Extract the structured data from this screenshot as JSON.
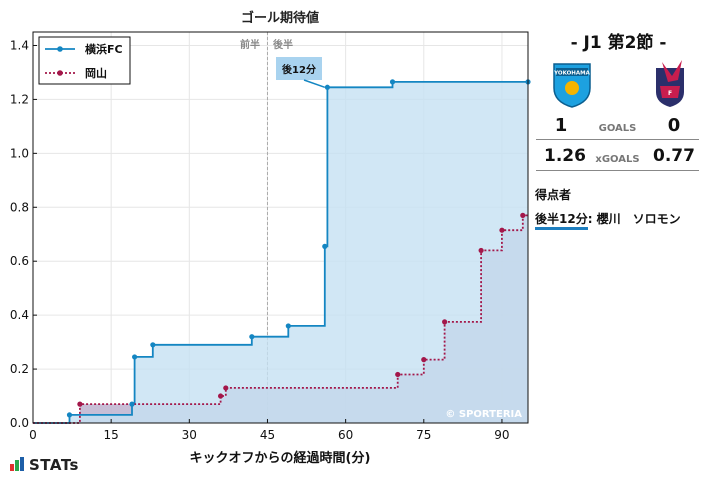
{
  "chart_data": {
    "type": "line",
    "title": "ゴール期待値",
    "xlabel": "キックオフからの経過時間(分)",
    "ylabel": "",
    "xlim": [
      0,
      95
    ],
    "ylim": [
      0,
      1.45
    ],
    "xticks": [
      0,
      15,
      30,
      45,
      60,
      75,
      90
    ],
    "yticks": [
      0.0,
      0.2,
      0.4,
      0.6,
      0.8,
      1.0,
      1.2,
      1.4
    ],
    "grid": true,
    "legend_position": "top-left",
    "halftime_labels": {
      "first": "前半",
      "second": "後半",
      "x": 45
    },
    "annotation": {
      "text": "後12分",
      "x": 56,
      "y": 1.245
    },
    "watermark": "© SPORTERIA",
    "series": [
      {
        "name": "横浜FC",
        "color": "#1486c2",
        "fill": "#c5e1f3",
        "style": "solid",
        "x": [
          7,
          19,
          19.5,
          23,
          42,
          49,
          56,
          56.5,
          69,
          95
        ],
        "y": [
          0.03,
          0.07,
          0.245,
          0.29,
          0.32,
          0.36,
          0.655,
          1.245,
          1.265,
          1.265
        ]
      },
      {
        "name": "岡山",
        "color": "#a3174a",
        "fill": "#bdb3cf",
        "style": "dotted",
        "x": [
          9,
          36,
          37,
          70,
          75,
          79,
          86,
          90,
          94
        ],
        "y": [
          0.07,
          0.1,
          0.13,
          0.18,
          0.235,
          0.375,
          0.64,
          0.715,
          0.77
        ]
      }
    ]
  },
  "panel": {
    "match_title": "- J1 第2節 -",
    "home_logo_text": "YOKOHAMA",
    "home_color": "#1da1e0",
    "away_color": "#c81d4e",
    "home_goals": "1",
    "away_goals": "0",
    "goals_label": "GOALS",
    "home_xg": "1.26",
    "away_xg": "0.77",
    "xg_label": "xGOALS",
    "scorers_title": "得点者",
    "scorer_time": "後半12分",
    "scorer_name": ": 櫻川　ソロモン"
  },
  "brand": "STATs"
}
